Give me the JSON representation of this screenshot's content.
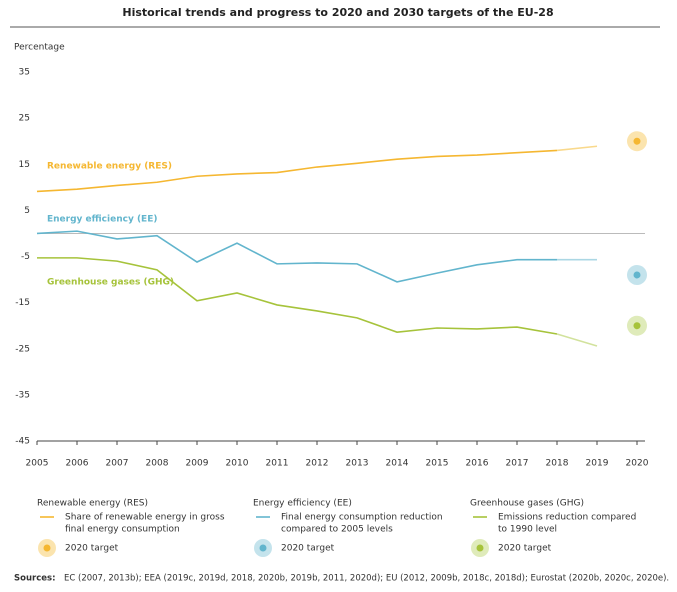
{
  "chart_data": {
    "type": "line",
    "title": "Historical trends and progress to 2020 and 2030 targets of the EU-28",
    "ylabel": "Percentage",
    "x": [
      2005,
      2006,
      2007,
      2008,
      2009,
      2010,
      2011,
      2012,
      2013,
      2014,
      2015,
      2016,
      2017,
      2018,
      2019,
      2020
    ],
    "xlim": [
      2005,
      2020
    ],
    "xticks": [
      2005,
      2006,
      2007,
      2008,
      2009,
      2010,
      2011,
      2012,
      2013,
      2014,
      2015,
      2016,
      2017,
      2018,
      2019,
      2020
    ],
    "ylim": [
      -45,
      35
    ],
    "yticks": [
      35,
      25,
      15,
      5,
      -5,
      -15,
      -25,
      -35,
      -45
    ],
    "target_label": "2020 target",
    "series": [
      {
        "name": "Renewable energy (RES)",
        "color": "#f5b731",
        "light_color": "#f9d98c",
        "description": [
          "Share of renewable energy in gross",
          "final energy consumption"
        ],
        "values": [
          9.1,
          9.6,
          10.4,
          11.1,
          12.4,
          12.9,
          13.2,
          14.4,
          15.2,
          16.1,
          16.7,
          17.0,
          17.5,
          18.0,
          18.9,
          null
        ],
        "target": 20
      },
      {
        "name": "Energy efficiency (EE)",
        "color": "#62b5cd",
        "light_color": "#abd7e4",
        "description": [
          "Final energy consumption reduction",
          "compared to 2005 levels"
        ],
        "values": [
          0.0,
          0.5,
          -1.2,
          -0.5,
          -6.2,
          -2.1,
          -6.6,
          -6.4,
          -6.6,
          -10.5,
          -8.6,
          -6.8,
          -5.7,
          -5.7,
          -5.7,
          null
        ],
        "target": -9
      },
      {
        "name": "Greenhouse gases (GHG)",
        "color": "#a6c33b",
        "light_color": "#d2e29d",
        "description": [
          "Emissions reduction compared",
          "to 1990 level"
        ],
        "values": [
          -5.3,
          -5.3,
          -6.0,
          -7.9,
          -14.6,
          -12.9,
          -15.5,
          -16.8,
          -18.3,
          -21.4,
          -20.5,
          -20.7,
          -20.3,
          -21.8,
          -24.4,
          null
        ],
        "target": -20
      }
    ],
    "sources_label": "Sources:",
    "sources": "EC (2007, 2013b); EEA (2019c, 2019d, 2018, 2020b, 2019b, 2011, 2020d); EU (2012, 2009b, 2018c, 2018d); Eurostat (2020b, 2020c, 2020e)."
  }
}
